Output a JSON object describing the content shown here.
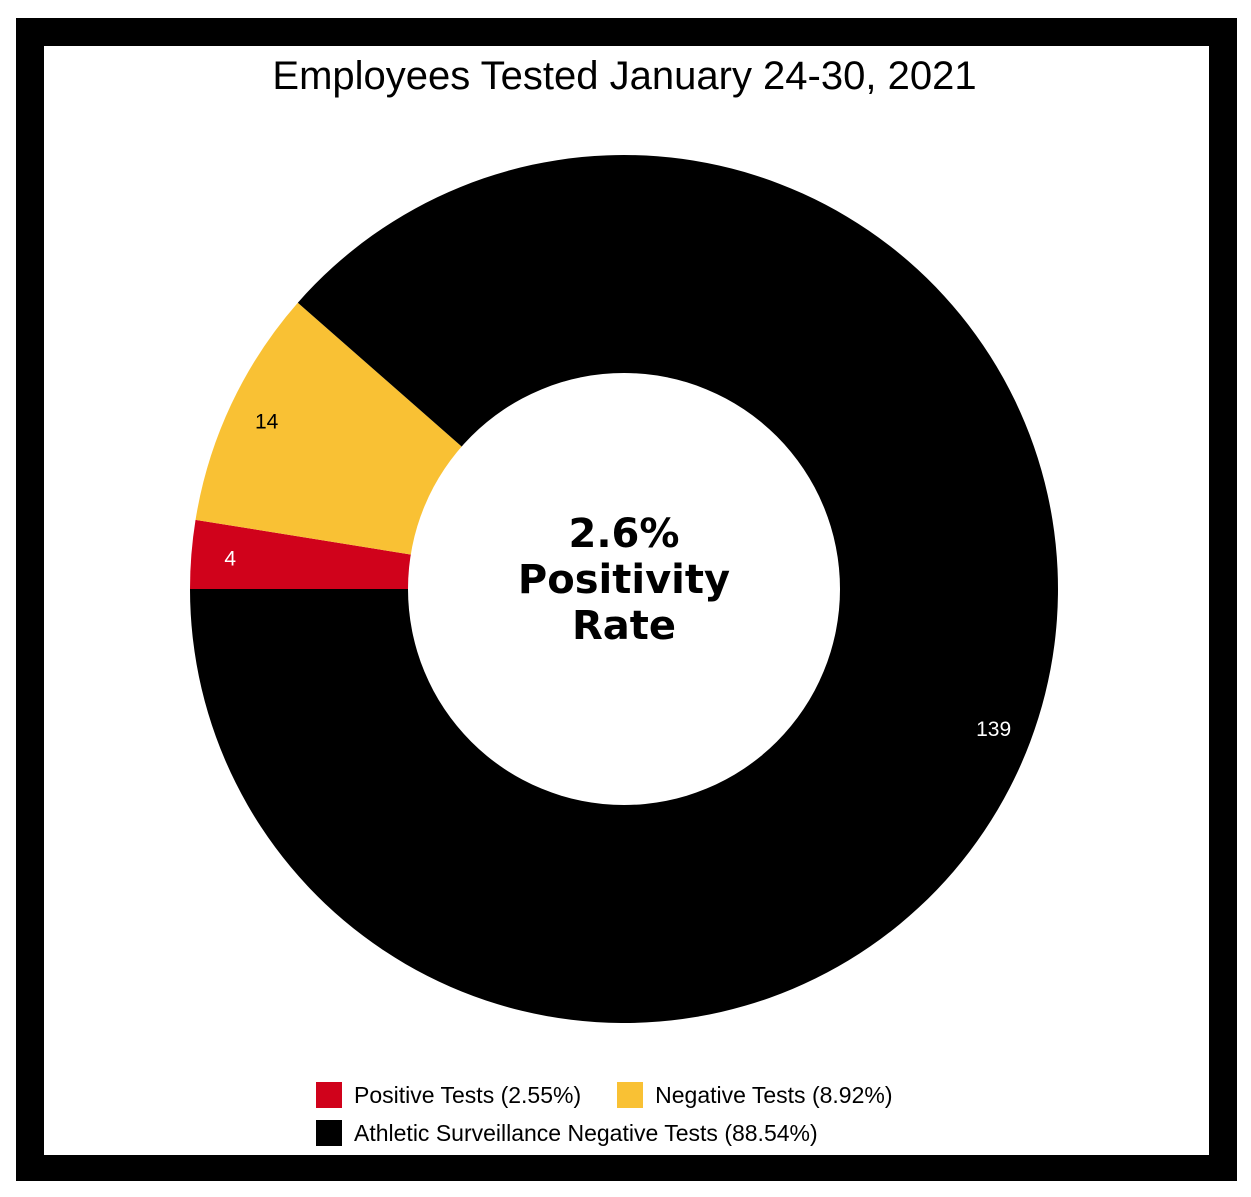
{
  "chart_data": {
    "type": "pie",
    "title": "Employees Tested January 24-30, 2021",
    "center_label": [
      "2.6%",
      "Positivity",
      "Rate"
    ],
    "categories": [
      "Positive Tests",
      "Negative Tests",
      "Athletic Surveillance Negative Tests"
    ],
    "values": [
      4,
      14,
      139
    ],
    "data_labels": [
      "4",
      "14",
      "139"
    ],
    "legend": [
      "Positive Tests (2.55%)",
      "Negative Tests (8.92%)",
      "Athletic Surveillance Negative Tests (88.54%)"
    ],
    "colors": [
      "#d0021b",
      "#f9c134",
      "#000000"
    ],
    "label_colors": [
      "#ffffff",
      "#000000",
      "#ffffff"
    ],
    "donut": true,
    "legend_position": "bottom"
  }
}
